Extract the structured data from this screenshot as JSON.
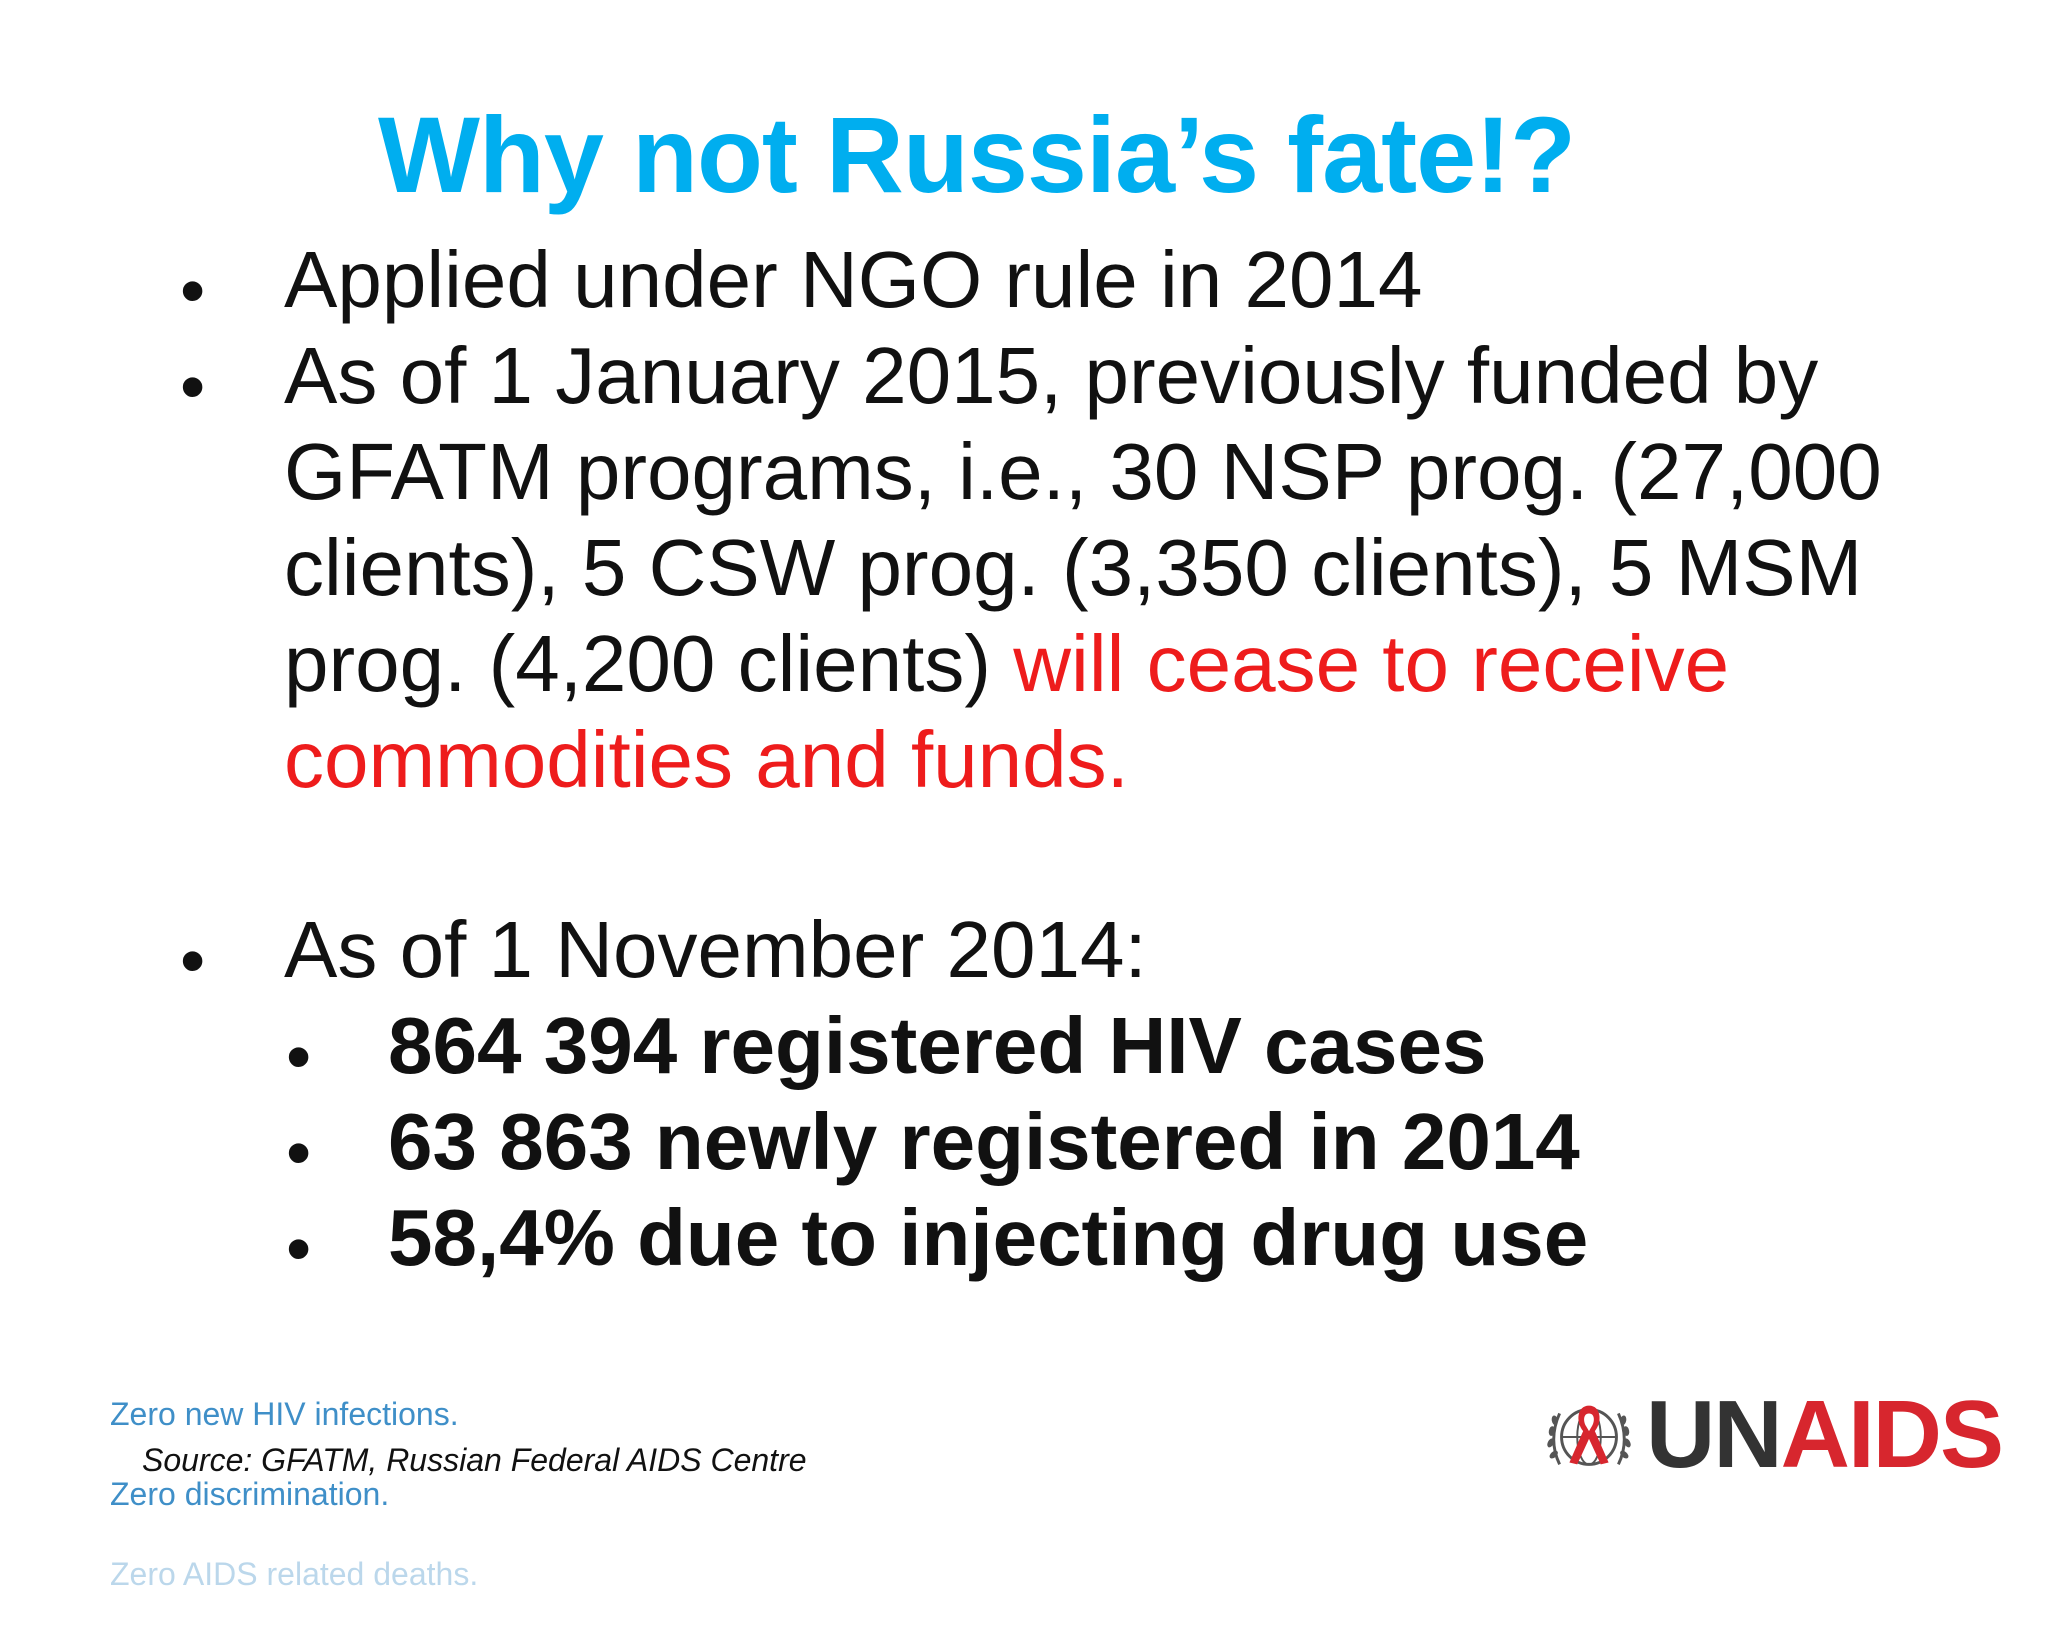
{
  "slide": {
    "title": "Why not Russia’s fate!?",
    "bullets": [
      {
        "marker": "•",
        "lines": [
          "Applied under NGO rule in 2014"
        ]
      },
      {
        "marker": "•",
        "lines": [
          "As of 1 January 2015, previously funded by",
          "GFATM programs, i.e., 30 NSP prog. (27,000",
          "clients), 5 CSW prog. (3,350 clients), 5 MSM"
        ],
        "line4_normal": "prog. (4,200 clients) ",
        "line4_red": "will cease to receive",
        "line5_red": "commodities and funds."
      },
      {
        "marker": "•",
        "lines": [
          "As of 1 November 2014:"
        ],
        "subbullets": [
          {
            "marker": "•",
            "text": "864 394 registered HIV cases"
          },
          {
            "marker": "•",
            "text": "63 863 newly registered in 2014"
          },
          {
            "marker": "•",
            "text": "58,4% due to injecting drug use"
          }
        ]
      }
    ],
    "red_color": "#ee1c1c",
    "title_color": "#00aeef"
  },
  "footer": {
    "tagline_lines": [
      "Zero new HIV infections.",
      "Zero discrimination.",
      "Zero AIDS related deaths."
    ],
    "source": "Source: GFATM, Russian Federal AIDS Centre",
    "logo": {
      "emblem_icon": "un-emblem-red-ribbon-icon",
      "text_un": "UN",
      "text_aids": "AIDS"
    }
  }
}
